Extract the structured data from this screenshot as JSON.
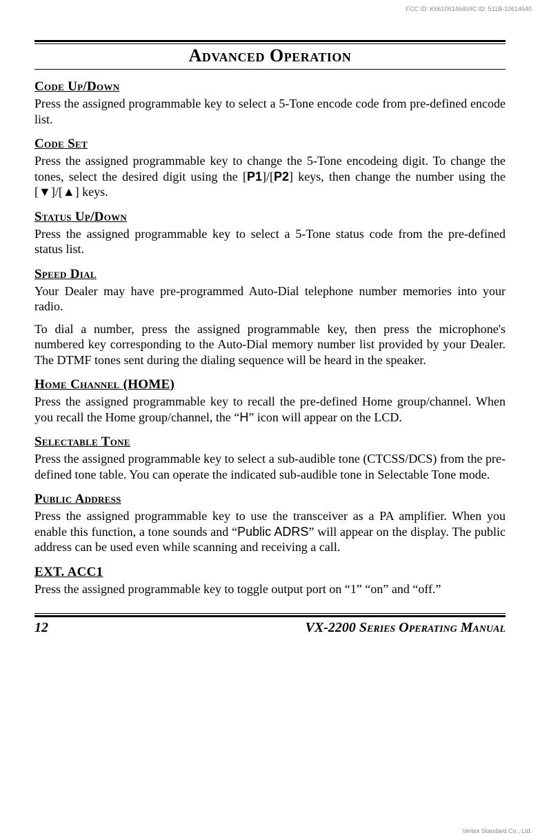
{
  "meta": {
    "fcc_id": "FCC ID: K6610614640/IC ID: 511B-10614640",
    "vertex": "Vertex Standard Co., Ltd."
  },
  "title": "Advanced Operation",
  "sections": {
    "code_up_down": {
      "heading": "Code Up/Down",
      "body": "Press the assigned programmable key to select a 5-Tone encode code from pre-defined encode list."
    },
    "code_set": {
      "heading": "Code Set",
      "body_1": "Press the assigned programmable key to change the 5-Tone encodeing digit. To change the tones, select the desired digit using the [",
      "p1": "P1",
      "body_2": "]/[",
      "p2": "P2",
      "body_3": "] keys, then change the number using the [",
      "body_4": "]/[",
      "body_5": "] keys."
    },
    "status_up_down": {
      "heading": "Status Up/Down",
      "body": "Press the assigned programmable key to select a 5-Tone status code from the pre-defined status list."
    },
    "speed_dial": {
      "heading": "Speed Dial",
      "body1": "Your Dealer may have pre-programmed Auto-Dial telephone number memories into your radio.",
      "body2": "To dial a number, press the assigned programmable key, then press the microphone's numbered key corresponding to the Auto-Dial memory number list provided by your Dealer. The DTMF tones sent during the dialing sequence will be heard in the speaker."
    },
    "home_channel": {
      "heading": "Home Channel (HOME)",
      "body_1": "Press the assigned programmable key to recall the pre-defined Home group/channel. When you recall the Home group/channel, the “",
      "h_icon": "H",
      "body_2": "” icon will appear on the LCD."
    },
    "selectable_tone": {
      "heading": "Selectable Tone",
      "body": "Press the assigned programmable key to select a sub-audible tone (CTCSS/DCS) from the pre-defined tone table. You can operate the indicated sub-audible tone in Selectable Tone mode."
    },
    "public_address": {
      "heading": "Public Address",
      "body_1": "Press the assigned programmable key to use the transceiver as a PA amplifier. When you enable this function, a tone sounds and “",
      "label": "Public ADRS",
      "body_2": "” will appear on the display. The public address can be used even while scanning and receiving a call."
    },
    "ext_acc1": {
      "heading": "EXT. ACC1",
      "body": "Press the assigned programmable key to toggle output port on “1” “on” and “off.”"
    }
  },
  "footer": {
    "page_number": "12",
    "manual_title": "VX-2200 Series Operating Manual"
  }
}
